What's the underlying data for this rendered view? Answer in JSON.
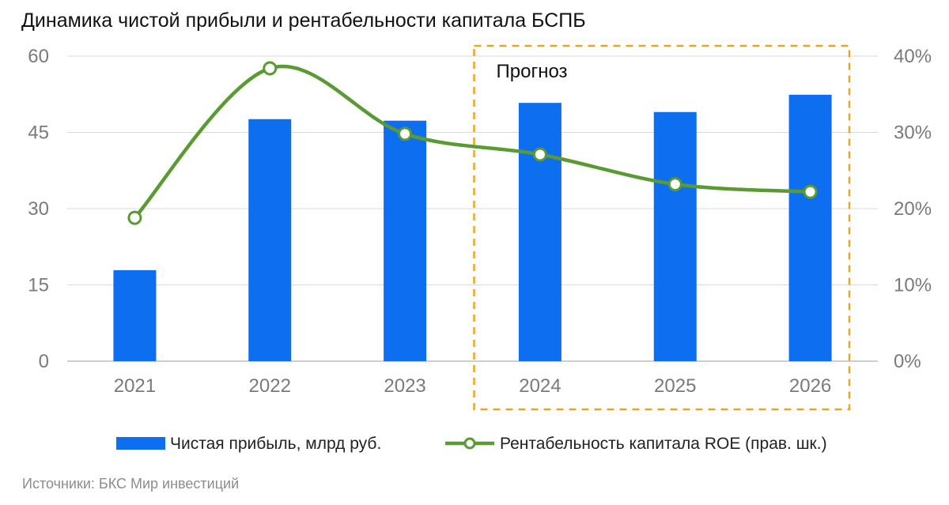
{
  "chart_data": {
    "type": "bar",
    "title": "Динамика чистой прибыли и рентабельности капитала БСПБ",
    "categories": [
      "2021",
      "2022",
      "2023",
      "2024",
      "2025",
      "2026"
    ],
    "series": [
      {
        "name": "Чистая прибыль, млрд руб.",
        "type": "bar",
        "axis": "left",
        "values": [
          17.9,
          47.6,
          47.3,
          50.8,
          49.0,
          52.4
        ],
        "color": "#0d6ff0"
      },
      {
        "name": "Рентабельность капитала ROE (прав. шк.)",
        "type": "line",
        "axis": "right",
        "values": [
          18.8,
          38.4,
          29.8,
          27.1,
          23.2,
          22.2
        ],
        "color": "#5a9a32",
        "smooth": true
      }
    ],
    "y_left": {
      "range": [
        0,
        60
      ],
      "ticks": [
        "0",
        "15",
        "30",
        "45",
        "60"
      ]
    },
    "y_right": {
      "range": [
        0,
        40
      ],
      "ticks": [
        "0%",
        "10%",
        "20%",
        "30%",
        "40%"
      ]
    },
    "grid": true,
    "legend": "bottom",
    "annotation": {
      "text": "Прогноз",
      "categories": [
        "2024",
        "2025",
        "2026"
      ],
      "color": "#e8a827"
    }
  },
  "source": "Источники: БКС Мир инвестиций"
}
